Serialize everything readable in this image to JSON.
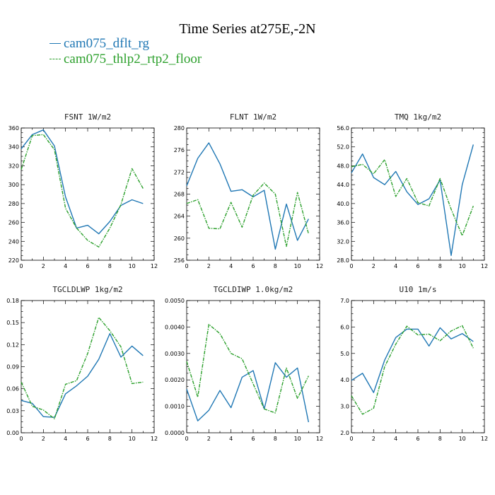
{
  "title": "Time Series at275E,-2N",
  "colors": {
    "series1": "#1f77b4",
    "series2": "#2ca02c"
  },
  "legend": [
    {
      "label": "cam075_dflt_rg",
      "color": "#1f77b4",
      "style": "solid"
    },
    {
      "label": "cam075_thlp2_rtp2_floor",
      "color": "#2ca02c",
      "style": "dashed"
    }
  ],
  "chart_data": [
    {
      "type": "line",
      "title": "FSNT  1W/m2",
      "xlim": [
        0,
        12
      ],
      "ylim": [
        220,
        360
      ],
      "xticks": [
        "0",
        "2",
        "4",
        "6",
        "8",
        "10",
        "12"
      ],
      "yticks": [
        "220",
        "240",
        "260",
        "280",
        "300",
        "320",
        "340",
        "360"
      ],
      "x": [
        0,
        1,
        2,
        3,
        4,
        5,
        6,
        7,
        8,
        9,
        10,
        11
      ],
      "series": [
        {
          "values": [
            338,
            353,
            358,
            341,
            287,
            254,
            257,
            248,
            261,
            278,
            284,
            280
          ]
        },
        {
          "values": [
            316,
            352,
            353,
            337,
            275,
            254,
            241,
            234,
            254,
            279,
            317,
            296
          ]
        }
      ]
    },
    {
      "type": "line",
      "title": "FLNT  1W/m2",
      "xlim": [
        0,
        12
      ],
      "ylim": [
        256,
        280
      ],
      "xticks": [
        "0",
        "2",
        "4",
        "6",
        "8",
        "10",
        "12"
      ],
      "yticks": [
        "256",
        "260",
        "264",
        "268",
        "272",
        "276",
        "280"
      ],
      "x": [
        0,
        1,
        2,
        3,
        4,
        5,
        6,
        7,
        8,
        9,
        10,
        11
      ],
      "series": [
        {
          "values": [
            269.5,
            274.5,
            277.3,
            273.5,
            268.5,
            268.8,
            267.5,
            268.7,
            258.0,
            266.2,
            259.6,
            263.5
          ]
        },
        {
          "values": [
            266.3,
            267.0,
            261.8,
            261.7,
            266.5,
            262.0,
            267.8,
            270.0,
            268.0,
            258.5,
            268.3,
            260.8
          ]
        }
      ]
    },
    {
      "type": "line",
      "title": "TMQ  1kg/m2",
      "xlim": [
        0,
        12
      ],
      "ylim": [
        28,
        56
      ],
      "xticks": [
        "0",
        "2",
        "4",
        "6",
        "8",
        "10",
        "12"
      ],
      "yticks": [
        "28.0",
        "32.0",
        "36.0",
        "40.0",
        "44.0",
        "48.0",
        "52.0",
        "56.0"
      ],
      "x": [
        0,
        1,
        2,
        3,
        4,
        5,
        6,
        7,
        8,
        9,
        10,
        11
      ],
      "series": [
        {
          "values": [
            46.5,
            50.5,
            45.5,
            44.0,
            46.8,
            42.5,
            39.8,
            41.0,
            45.0,
            29.0,
            44.0,
            52.5
          ]
        },
        {
          "values": [
            47.8,
            48.3,
            46.3,
            49.3,
            41.5,
            45.3,
            40.2,
            39.5,
            45.3,
            38.8,
            33.2,
            39.5
          ]
        }
      ]
    },
    {
      "type": "line",
      "title": "TGCLDLWP  1kg/m2",
      "xlim": [
        0,
        12
      ],
      "ylim": [
        0,
        0.18
      ],
      "xticks": [
        "0",
        "2",
        "4",
        "6",
        "8",
        "10",
        "12"
      ],
      "yticks": [
        "0.00",
        "0.03",
        "0.06",
        "0.09",
        "0.12",
        "0.15",
        "0.18"
      ],
      "x": [
        0,
        1,
        2,
        3,
        4,
        5,
        6,
        7,
        8,
        9,
        10,
        11
      ],
      "series": [
        {
          "values": [
            0.044,
            0.04,
            0.022,
            0.021,
            0.053,
            0.064,
            0.077,
            0.1,
            0.135,
            0.103,
            0.118,
            0.105
          ]
        },
        {
          "values": [
            0.069,
            0.036,
            0.031,
            0.019,
            0.066,
            0.071,
            0.108,
            0.157,
            0.139,
            0.117,
            0.067,
            0.069
          ]
        }
      ]
    },
    {
      "type": "line",
      "title": "TGCLDIWP  1.0kg/m2",
      "xlim": [
        0,
        12
      ],
      "ylim": [
        0,
        0.005
      ],
      "xticks": [
        "0",
        "2",
        "4",
        "6",
        "8",
        "10",
        "12"
      ],
      "yticks": [
        "0.0000",
        "0.0010",
        "0.0020",
        "0.0030",
        "0.0040",
        "0.0050"
      ],
      "x": [
        0,
        1,
        2,
        3,
        4,
        5,
        6,
        7,
        8,
        9,
        10,
        11
      ],
      "series": [
        {
          "values": [
            0.00165,
            0.00045,
            0.00085,
            0.0016,
            0.00095,
            0.0021,
            0.00235,
            0.0009,
            0.00265,
            0.0021,
            0.00245,
            0.0004
          ]
        },
        {
          "values": [
            0.0027,
            0.00135,
            0.0041,
            0.00375,
            0.003,
            0.0028,
            0.00185,
            0.0009,
            0.00075,
            0.00245,
            0.0013,
            0.00215
          ]
        }
      ]
    },
    {
      "type": "line",
      "title": "U10  1m/s",
      "xlim": [
        0,
        12
      ],
      "ylim": [
        2,
        7
      ],
      "xticks": [
        "0",
        "2",
        "4",
        "6",
        "8",
        "10",
        "12"
      ],
      "yticks": [
        "2.0",
        "3.0",
        "4.0",
        "5.0",
        "6.0",
        "7.0"
      ],
      "x": [
        0,
        1,
        2,
        3,
        4,
        5,
        6,
        7,
        8,
        9,
        10,
        11
      ],
      "series": [
        {
          "values": [
            3.98,
            4.25,
            3.52,
            4.75,
            5.6,
            5.92,
            5.92,
            5.28,
            5.97,
            5.55,
            5.75,
            5.45
          ]
        },
        {
          "values": [
            3.4,
            2.7,
            2.93,
            4.5,
            5.35,
            6.03,
            5.7,
            5.73,
            5.48,
            5.85,
            6.05,
            5.2
          ]
        }
      ]
    }
  ]
}
